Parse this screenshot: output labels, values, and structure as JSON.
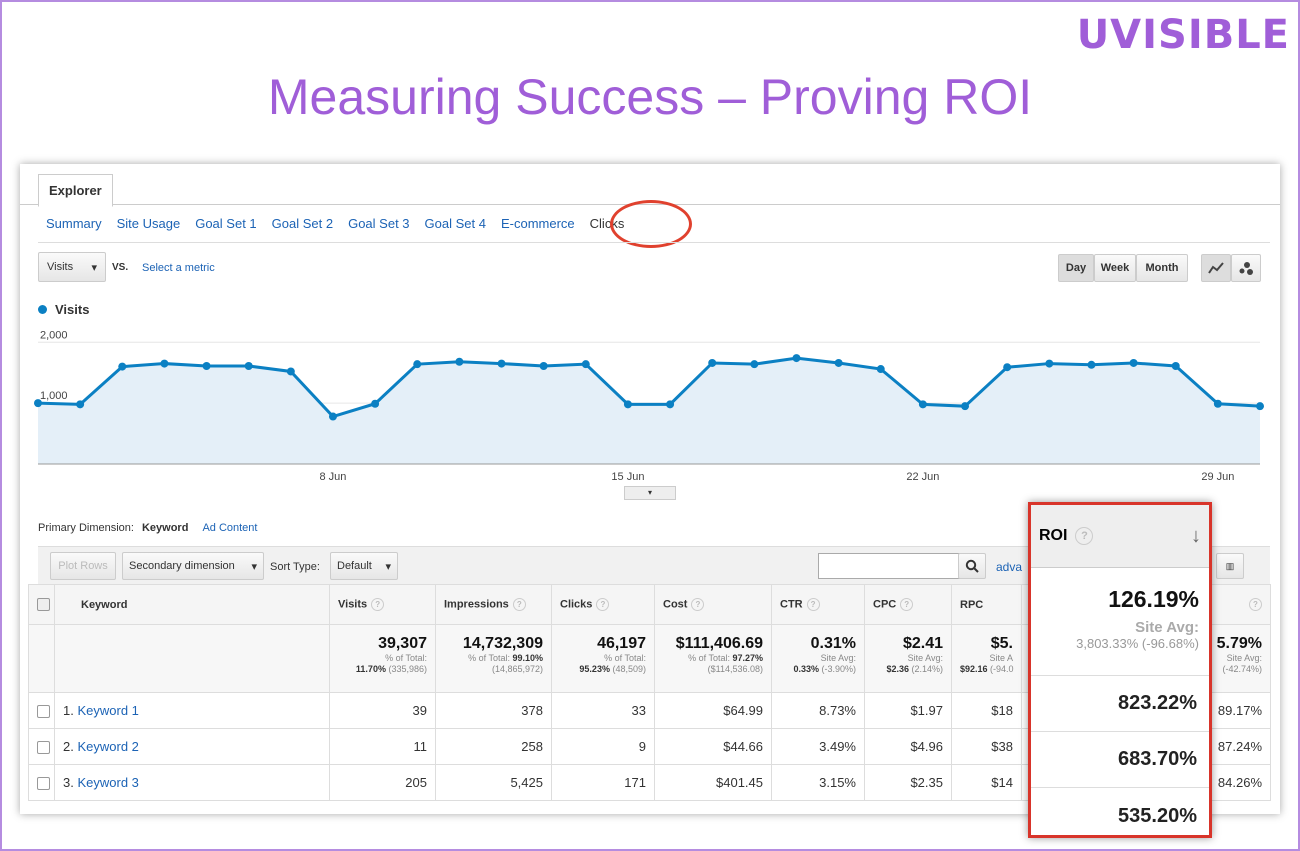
{
  "brand": "UVISIBLE",
  "title": "Measuring Success – Proving ROI",
  "explorer_tab": "Explorer",
  "subtabs": [
    "Summary",
    "Site Usage",
    "Goal Set 1",
    "Goal Set 2",
    "Goal Set 3",
    "Goal Set 4",
    "E-commerce",
    "Clicks"
  ],
  "controls": {
    "metric": "Visits",
    "vs": "VS.",
    "select_metric": "Select a metric",
    "day": "Day",
    "week": "Week",
    "month": "Month"
  },
  "legend": "Visits",
  "chart_data": {
    "type": "area",
    "series": [
      {
        "name": "Visits",
        "values": [
          1000,
          980,
          1600,
          1650,
          1610,
          1610,
          1520,
          780,
          990,
          1640,
          1680,
          1650,
          1610,
          1640,
          980,
          980,
          1660,
          1640,
          1740,
          1660,
          1560,
          980,
          950,
          1590,
          1650,
          1630,
          1660,
          1610,
          990,
          950
        ]
      }
    ],
    "y_ticks": [
      "2,000",
      "1,000"
    ],
    "ylim": [
      0,
      2300
    ],
    "x_ticks": [
      "8 Jun",
      "15 Jun",
      "22 Jun",
      "29 Jun"
    ]
  },
  "primary_dimension": {
    "label": "Primary Dimension:",
    "keyword": "Keyword",
    "ad_content": "Ad Content"
  },
  "toolbar": {
    "plot_rows": "Plot Rows",
    "secondary": "Secondary dimension",
    "sort_label": "Sort Type:",
    "sort_value": "Default",
    "advanced": "adva"
  },
  "columns": [
    "Keyword",
    "Visits",
    "Impressions",
    "Clicks",
    "Cost",
    "CTR",
    "CPC",
    "RPC"
  ],
  "last_col_partial": "?",
  "totals": {
    "visits": {
      "value": "39,307",
      "l1": "% of Total:",
      "l2": "11.70%",
      "l3": "(335,986)"
    },
    "impressions": {
      "value": "14,732,309",
      "l1": "% of Total: ",
      "l2": "99.10%",
      "l3": "(14,865,972)"
    },
    "clicks": {
      "value": "46,197",
      "l1": "% of Total:",
      "l2": "95.23%",
      "l3": "(48,509)"
    },
    "cost": {
      "value": "$111,406.69",
      "l1": "% of Total: ",
      "l2": "97.27%",
      "l3": "($114,536.08)"
    },
    "ctr": {
      "value": "0.31%",
      "l1": "Site Avg:",
      "l2": "0.33%",
      "l3": "(-3.90%)"
    },
    "cpc": {
      "value": "$2.41",
      "l1": "Site Avg:",
      "l2": "$2.36",
      "l3": "(2.14%)"
    },
    "rpc": {
      "value": "$5.",
      "l1": "Site A",
      "l2": "$92.16",
      "l3": "(-94.0"
    },
    "last": {
      "value": "5.79%",
      "l1": "Site Avg:",
      "l2": "",
      "l3": "(-42.74%)"
    }
  },
  "rows": [
    {
      "num": "1.",
      "kw": "Keyword 1",
      "visits": "39",
      "impr": "378",
      "clicks": "33",
      "cost": "$64.99",
      "ctr": "8.73%",
      "cpc": "$1.97",
      "rpc": "$18",
      "last": "89.17%"
    },
    {
      "num": "2.",
      "kw": "Keyword 2",
      "visits": "11",
      "impr": "258",
      "clicks": "9",
      "cost": "$44.66",
      "ctr": "3.49%",
      "cpc": "$4.96",
      "rpc": "$38",
      "last": "87.24%"
    },
    {
      "num": "3.",
      "kw": "Keyword 3",
      "visits": "205",
      "impr": "5,425",
      "clicks": "171",
      "cost": "$401.45",
      "ctr": "3.15%",
      "cpc": "$2.35",
      "rpc": "$14",
      "last": "84.26%"
    }
  ],
  "roi": {
    "header": "ROI",
    "total": "126.19%",
    "site_avg_label": "Site Avg:",
    "site_avg_value": "3,803.33%",
    "site_avg_delta": "(-96.68%)",
    "values": [
      "823.22%",
      "683.70%",
      "535.20%"
    ]
  }
}
